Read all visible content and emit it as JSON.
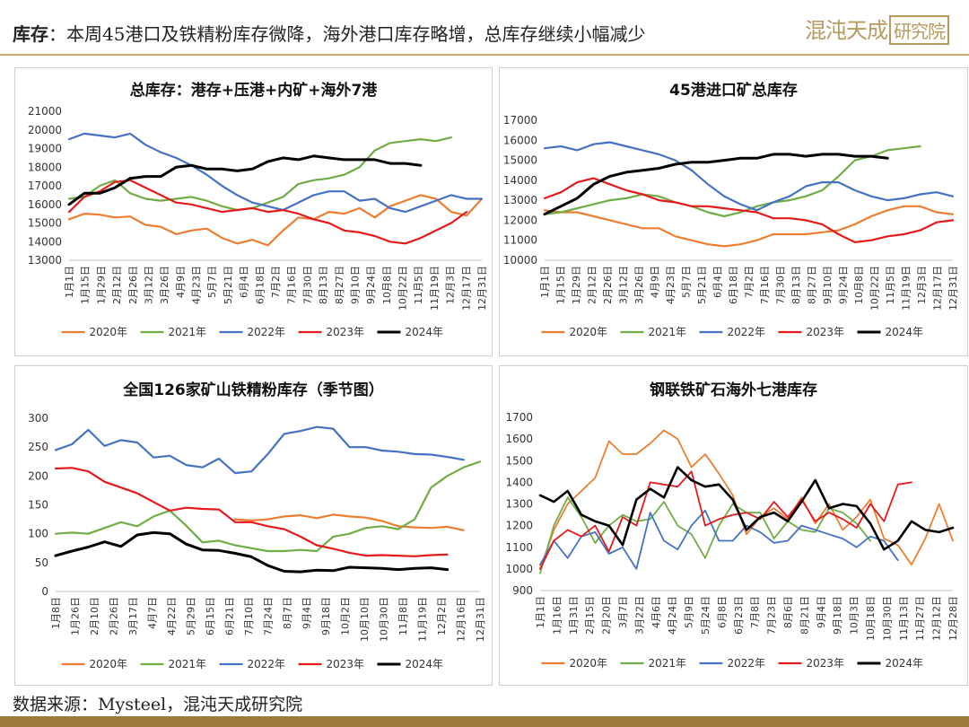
{
  "header": {
    "lead": "库存",
    "colon": "：",
    "text": "本周45港口及铁精粉库存微降，海外港口库存略增，总库存继续小幅减少",
    "logo_main": "混沌天成",
    "logo_box": "研究院"
  },
  "footer": {
    "text": "数据来源：Mysteel，混沌天成研究院"
  },
  "colors": {
    "2020年": "#ED7D31",
    "2021年": "#70AD47",
    "2022年": "#4472C4",
    "2023年": "#E41A1C",
    "2024年": "#000000",
    "accent": "#c8a86b",
    "footer_bar": "#9c7a3c"
  },
  "chart_data": [
    {
      "type": "line",
      "title": "总库存：港存+压港+内矿+海外7港",
      "ylim": [
        13000,
        21000
      ],
      "yticks": [
        13000,
        14000,
        15000,
        16000,
        17000,
        18000,
        19000,
        20000,
        21000
      ],
      "xticks": [
        "1月1日",
        "1月15日",
        "1月29日",
        "2月12日",
        "2月26日",
        "3月12日",
        "3月26日",
        "4月9日",
        "4月23日",
        "5月7日",
        "5月21日",
        "6月4日",
        "6月18日",
        "7月2日",
        "7月16日",
        "7月30日",
        "8月13日",
        "8月27日",
        "9月10日",
        "9月24日",
        "10月8日",
        "10月22日",
        "11月5日",
        "11月19日",
        "12月3日",
        "12月17日",
        "12月31日"
      ],
      "legend": [
        "2020年",
        "2021年",
        "2022年",
        "2023年",
        "2024年"
      ],
      "legend_position": "bottom",
      "grid": false,
      "series": [
        {
          "name": "2020年",
          "values": [
            15200,
            15500,
            15450,
            15300,
            15350,
            14900,
            14800,
            14400,
            14600,
            14700,
            14200,
            13900,
            14100,
            13800,
            14600,
            15300,
            15200,
            15600,
            15500,
            15800,
            15300,
            15900,
            16200,
            16500,
            16300,
            15600,
            15400,
            16300
          ]
        },
        {
          "name": "2021年",
          "values": [
            16300,
            16400,
            17000,
            17300,
            16600,
            16300,
            16200,
            16300,
            16400,
            16200,
            15900,
            15700,
            15800,
            16100,
            16400,
            17100,
            17300,
            17400,
            17600,
            18000,
            18900,
            19300,
            19400,
            19500,
            19400,
            19600
          ]
        },
        {
          "name": "2022年",
          "values": [
            19500,
            19800,
            19700,
            19600,
            19800,
            19200,
            18800,
            18500,
            18100,
            17600,
            17000,
            16500,
            16100,
            15900,
            15700,
            16100,
            16500,
            16700,
            16700,
            16200,
            16300,
            15800,
            15600,
            15900,
            16200,
            16500,
            16300,
            16300
          ]
        },
        {
          "name": "2023年",
          "values": [
            15600,
            16400,
            16700,
            17200,
            17300,
            16900,
            16500,
            16100,
            16000,
            15800,
            15600,
            15700,
            15800,
            15600,
            15700,
            15500,
            15200,
            15000,
            14600,
            14500,
            14300,
            14000,
            13900,
            14200,
            14600,
            15000,
            15600
          ]
        },
        {
          "name": "2024年",
          "values": [
            16000,
            16600,
            16600,
            16900,
            17400,
            17500,
            17500,
            18000,
            18100,
            17900,
            17900,
            17800,
            17900,
            18300,
            18500,
            18400,
            18600,
            18500,
            18400,
            18400,
            18400,
            18200,
            18200,
            18100
          ]
        }
      ]
    },
    {
      "type": "line",
      "title": "45港进口矿总库存",
      "ylim": [
        10000,
        17000
      ],
      "yticks": [
        10000,
        11000,
        12000,
        13000,
        14000,
        15000,
        16000,
        17000
      ],
      "xticks": [
        "1月1日",
        "1月15日",
        "1月29日",
        "2月12日",
        "2月26日",
        "3月12日",
        "3月26日",
        "4月9日",
        "4月23日",
        "5月7日",
        "5月21日",
        "6月4日",
        "6月18日",
        "7月2日",
        "7月16日",
        "7月30日",
        "8月13日",
        "8月27日",
        "9月10日",
        "9月24日",
        "10月8日",
        "10月22日",
        "11月5日",
        "11月19日",
        "12月3日",
        "12月17日",
        "12月31日"
      ],
      "legend": [
        "2020年",
        "2021年",
        "2022年",
        "2023年",
        "2024年"
      ],
      "legend_position": "bottom",
      "grid": false,
      "series": [
        {
          "name": "2020年",
          "values": [
            12500,
            12400,
            12400,
            12200,
            12000,
            11800,
            11600,
            11600,
            11200,
            11000,
            10800,
            10700,
            10800,
            11000,
            11300,
            11300,
            11300,
            11400,
            11500,
            11800,
            12200,
            12500,
            12700,
            12700,
            12400,
            12300
          ]
        },
        {
          "name": "2021年",
          "values": [
            12300,
            12400,
            12600,
            12800,
            13000,
            13100,
            13300,
            13200,
            12900,
            12700,
            12400,
            12200,
            12400,
            12700,
            12900,
            13000,
            13200,
            13500,
            14200,
            15000,
            15200,
            15500,
            15600,
            15700
          ]
        },
        {
          "name": "2022年",
          "values": [
            15600,
            15700,
            15500,
            15800,
            15900,
            15700,
            15500,
            15300,
            15000,
            14500,
            13800,
            13200,
            12800,
            12500,
            12900,
            13200,
            13700,
            13900,
            13900,
            13500,
            13200,
            13000,
            13100,
            13300,
            13400,
            13200
          ]
        },
        {
          "name": "2023年",
          "values": [
            13100,
            13400,
            13900,
            14100,
            13800,
            13500,
            13300,
            13000,
            12900,
            12700,
            12700,
            12600,
            12500,
            12400,
            12100,
            12100,
            12000,
            11800,
            11300,
            10900,
            11000,
            11200,
            11300,
            11500,
            11900,
            12000
          ]
        },
        {
          "name": "2024年",
          "values": [
            12300,
            12700,
            13100,
            13800,
            14200,
            14400,
            14500,
            14600,
            14800,
            14900,
            14900,
            15000,
            15100,
            15100,
            15300,
            15300,
            15200,
            15300,
            15300,
            15200,
            15200,
            15100
          ]
        }
      ]
    },
    {
      "type": "line",
      "title": "全国126家矿山铁精粉库存（季节图）",
      "ylim": [
        0,
        300
      ],
      "yticks": [
        0,
        50,
        100,
        150,
        200,
        250,
        300
      ],
      "xticks": [
        "1月8日",
        "1月26日",
        "2月10日",
        "2月26日",
        "3月17日",
        "4月7日",
        "4月22日",
        "5月29日",
        "6月15日",
        "6月21日",
        "7月10日",
        "7月24日",
        "8月7日",
        "9月4日",
        "9月18日",
        "10月2日",
        "10月10日",
        "10月30日",
        "11月8日",
        "11月19日",
        "12月2日",
        "12月16日",
        "12月31日"
      ],
      "legend": [
        "2020年",
        "2021年",
        "2022年",
        "2023年",
        "2024年"
      ],
      "legend_position": "bottom",
      "grid": false,
      "series": [
        {
          "name": "2020年",
          "values": [
            null,
            null,
            null,
            null,
            null,
            null,
            null,
            null,
            null,
            null,
            null,
            125,
            123,
            125,
            130,
            132,
            127,
            133,
            130,
            128,
            122,
            113,
            111,
            110,
            112,
            106
          ]
        },
        {
          "name": "2021年",
          "values": [
            100,
            102,
            100,
            110,
            120,
            113,
            130,
            140,
            114,
            85,
            88,
            80,
            75,
            70,
            70,
            72,
            70,
            95,
            100,
            110,
            113,
            108,
            125,
            180,
            200,
            215,
            225
          ]
        },
        {
          "name": "2022年",
          "values": [
            245,
            255,
            280,
            252,
            262,
            258,
            232,
            235,
            219,
            215,
            230,
            205,
            208,
            238,
            273,
            278,
            285,
            282,
            250,
            250,
            244,
            242,
            238,
            237,
            233,
            228
          ]
        },
        {
          "name": "2023年",
          "values": [
            213,
            214,
            208,
            190,
            180,
            170,
            155,
            140,
            145,
            143,
            142,
            120,
            120,
            113,
            108,
            95,
            80,
            74,
            67,
            62,
            63,
            62,
            61,
            63,
            64
          ]
        },
        {
          "name": "2024年",
          "values": [
            62,
            70,
            77,
            86,
            78,
            98,
            102,
            100,
            82,
            72,
            71,
            66,
            60,
            45,
            35,
            34,
            37,
            36,
            42,
            41,
            40,
            38,
            40,
            41,
            38
          ]
        }
      ]
    },
    {
      "type": "line",
      "title": "钢联铁矿石海外七港库存",
      "ylim": [
        900,
        1700
      ],
      "yticks": [
        900,
        1000,
        1100,
        1200,
        1300,
        1400,
        1500,
        1600,
        1700
      ],
      "xticks": [
        "1月1日",
        "1月16日",
        "1月31日",
        "2月15日",
        "2月20日",
        "3月7日",
        "3月22日",
        "4月6日",
        "4月24日",
        "5月9日",
        "5月24日",
        "6月8日",
        "6月23日",
        "7月8日",
        "7月23日",
        "8月6日",
        "8月21日",
        "9月4日",
        "9月18日",
        "10月3日",
        "10月18日",
        "10月30日",
        "11月13日",
        "11月27日",
        "12月12日",
        "12月28日"
      ],
      "legend": [
        "2020年",
        "2021年",
        "2022年",
        "2023年",
        "2024年"
      ],
      "legend_position": "bottom",
      "grid": false,
      "series": [
        {
          "name": "2020年",
          "values": [
            1000,
            1180,
            1300,
            1360,
            1420,
            1590,
            1530,
            1530,
            1580,
            1640,
            1600,
            1470,
            1530,
            1440,
            1340,
            1160,
            1240,
            1280,
            1230,
            1330,
            1210,
            1300,
            1180,
            1240,
            1320,
            1140,
            1110,
            1020,
            1140,
            1300,
            1130
          ]
        },
        {
          "name": "2021年",
          "values": [
            980,
            1200,
            1330,
            1240,
            1120,
            1200,
            1250,
            1220,
            1230,
            1310,
            1200,
            1160,
            1050,
            1200,
            1300,
            1260,
            1260,
            1140,
            1220,
            1180,
            1170,
            1280,
            1260,
            1210,
            1130
          ]
        },
        {
          "name": "2022年",
          "values": [
            1020,
            1130,
            1050,
            1150,
            1170,
            1070,
            1100,
            1000,
            1260,
            1130,
            1090,
            1200,
            1270,
            1130,
            1130,
            1200,
            1170,
            1120,
            1130,
            1200,
            1180,
            1160,
            1140,
            1100,
            1150,
            1130,
            1040
          ]
        },
        {
          "name": "2023年",
          "values": [
            1000,
            1130,
            1180,
            1150,
            1200,
            1080,
            1240,
            1200,
            1400,
            1390,
            1380,
            1450,
            1200,
            1230,
            1250,
            1260,
            1230,
            1310,
            1240,
            1320,
            1220,
            1260,
            1230,
            1190,
            1300,
            1220,
            1390,
            1400
          ]
        },
        {
          "name": "2024年",
          "values": [
            1340,
            1310,
            1360,
            1250,
            1220,
            1200,
            1110,
            1320,
            1370,
            1330,
            1470,
            1410,
            1380,
            1390,
            1320,
            1180,
            1240,
            1260,
            1220,
            1310,
            1410,
            1280,
            1300,
            1290,
            1210,
            1090,
            1130,
            1220,
            1180,
            1170,
            1190
          ]
        }
      ]
    }
  ]
}
